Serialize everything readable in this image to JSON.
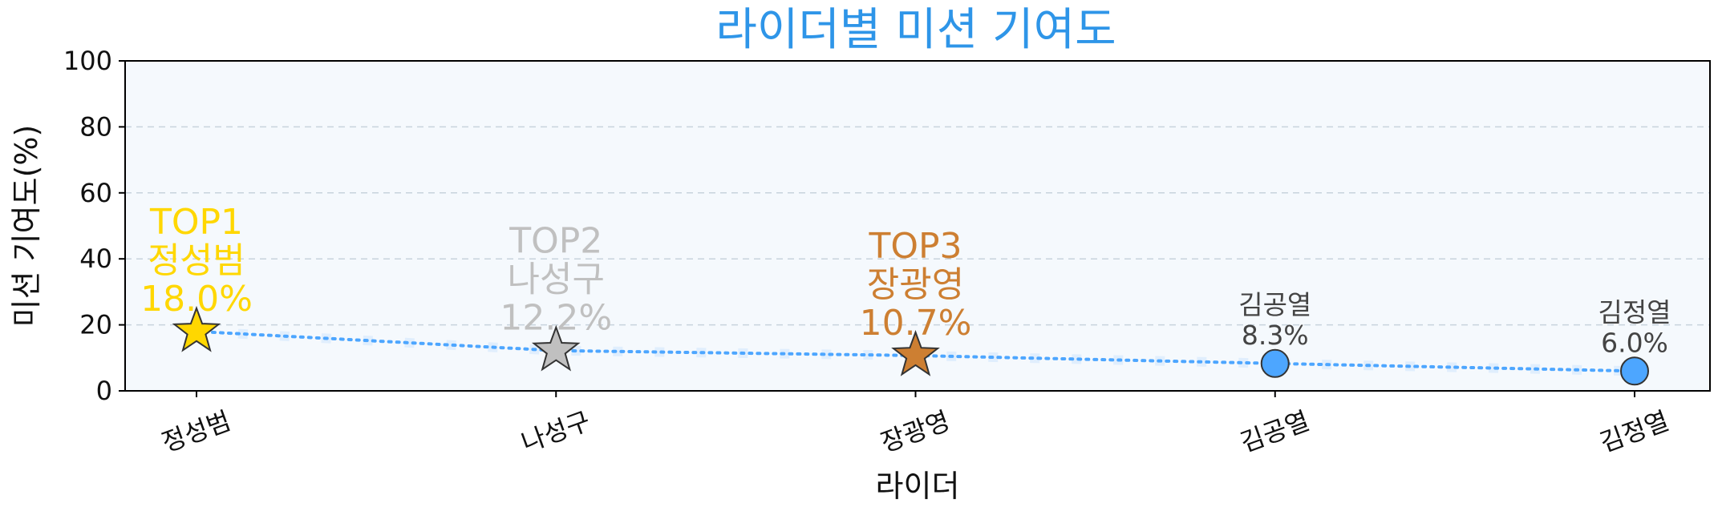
{
  "chart_data": {
    "type": "line",
    "title": "라이더별 미션 기여도",
    "xlabel": "라이더",
    "ylabel": "미션 기여도(%)",
    "ylim": [
      0,
      100
    ],
    "yticks": [
      0,
      20,
      40,
      60,
      80,
      100
    ],
    "grid": "horizontal dashed",
    "categories": [
      "정성범",
      "나성구",
      "장광영",
      "김공열",
      "김정열"
    ],
    "values": [
      18.0,
      12.2,
      10.7,
      8.3,
      6.0
    ],
    "value_labels": [
      "18.0%",
      "12.2%",
      "10.7%",
      "8.3%",
      "6.0%"
    ],
    "rank_labels": [
      "TOP1",
      "TOP2",
      "TOP3",
      "",
      ""
    ],
    "markers": [
      "star",
      "star",
      "star",
      "circle",
      "circle"
    ],
    "marker_colors": [
      "#FFD700",
      "#C0C0C0",
      "#CD7F32",
      "#4DA6FF",
      "#4DA6FF"
    ],
    "colors": {
      "title": "#2E95E8",
      "line": "#4DA6FF",
      "plot_background": "#F5F9FD",
      "grid": "#C8D3DD",
      "plain_annotation": "#444444"
    }
  }
}
